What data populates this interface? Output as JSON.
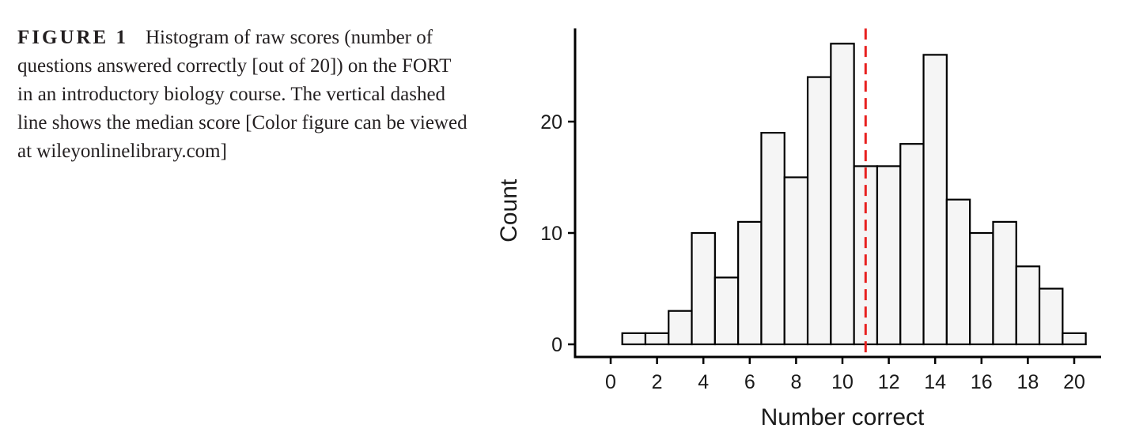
{
  "caption": {
    "label": "FIGURE 1",
    "text": "Histogram of raw scores (number of questions answered correctly [out of 20]) on the FORT in an introductory biology course. The vertical dashed line shows the median score [Color figure can be viewed at wileyonlinelibrary.com]"
  },
  "chart_data": {
    "type": "bar",
    "xlabel": "Number correct",
    "ylabel": "Count",
    "categories": [
      0,
      1,
      2,
      3,
      4,
      5,
      6,
      7,
      8,
      9,
      10,
      11,
      12,
      13,
      14,
      15,
      16,
      17,
      18,
      19,
      20
    ],
    "values": [
      0,
      1,
      1,
      3,
      10,
      6,
      11,
      19,
      15,
      24,
      27,
      16,
      16,
      18,
      26,
      13,
      10,
      11,
      7,
      5,
      1
    ],
    "x_ticks": [
      "0",
      "2",
      "4",
      "6",
      "8",
      "10",
      "12",
      "14",
      "16",
      "18",
      "20"
    ],
    "y_ticks": [
      "0",
      "10",
      "20"
    ],
    "xlim": [
      -0.5,
      21
    ],
    "ylim": [
      -0.5,
      28.5
    ],
    "median": 11,
    "median_line_color": "#e8201f",
    "bar_fill": "#f5f5f5",
    "bar_stroke": "#000000",
    "grid": false
  }
}
